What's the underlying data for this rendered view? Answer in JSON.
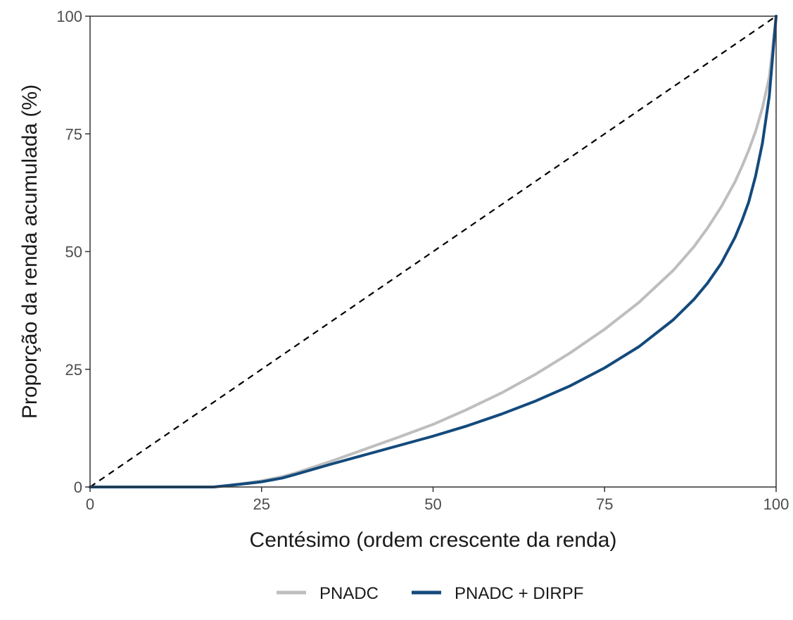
{
  "chart_data": {
    "type": "line",
    "title": "",
    "xlabel": "Centésimo (ordem crescente da renda)",
    "ylabel": "Proporção da renda acumulada (%)",
    "xlim": [
      0,
      100
    ],
    "ylim": [
      0,
      100
    ],
    "xticks": [
      0,
      25,
      50,
      75,
      100
    ],
    "yticks": [
      0,
      25,
      50,
      75,
      100
    ],
    "grid": false,
    "legend_position": "bottom",
    "equality_line": {
      "style": "dashed",
      "color": "#000000",
      "x": [
        0,
        100
      ],
      "y": [
        0,
        100
      ]
    },
    "x": [
      0,
      5,
      10,
      15,
      18,
      20,
      22,
      25,
      28,
      30,
      35,
      40,
      45,
      50,
      55,
      60,
      65,
      70,
      75,
      80,
      85,
      88,
      90,
      92,
      94,
      95,
      96,
      97,
      98,
      99,
      100
    ],
    "series": [
      {
        "name": "PNADC",
        "color": "#bebebe",
        "values": [
          0,
          0,
          0,
          0,
          0,
          0.3,
          0.7,
          1.3,
          2.2,
          3.0,
          5.4,
          8.0,
          10.6,
          13.3,
          16.5,
          20.0,
          24.0,
          28.5,
          33.5,
          39.2,
          46.0,
          51.0,
          55.0,
          59.5,
          64.8,
          68.0,
          71.5,
          75.5,
          80.5,
          87.0,
          100
        ]
      },
      {
        "name": "PNADC + DIRPF",
        "color": "#134a7c",
        "values": [
          0,
          0,
          0,
          0,
          0,
          0.3,
          0.6,
          1.1,
          1.9,
          2.7,
          4.8,
          6.8,
          8.8,
          10.8,
          13.0,
          15.5,
          18.3,
          21.5,
          25.3,
          29.8,
          35.5,
          39.8,
          43.3,
          47.5,
          53.0,
          56.5,
          60.5,
          66.0,
          73.0,
          83.0,
          100
        ]
      }
    ]
  }
}
